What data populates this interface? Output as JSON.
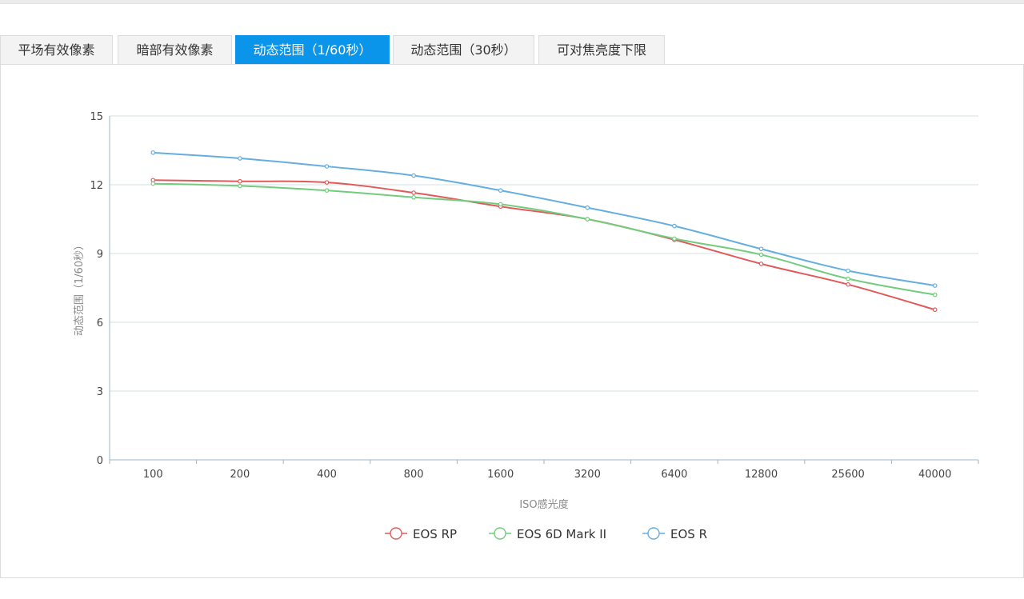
{
  "tabs": [
    {
      "label": "平场有效像素",
      "active": false
    },
    {
      "label": "暗部有效像素",
      "active": false
    },
    {
      "label": "动态范围（1/60秒）",
      "active": true
    },
    {
      "label": "动态范围（30秒）",
      "active": false
    },
    {
      "label": "可对焦亮度下限",
      "active": false
    }
  ],
  "chart_data": {
    "type": "line",
    "title": "",
    "xlabel": "ISO感光度",
    "ylabel": "动态范围（1/60秒）",
    "categories": [
      "100",
      "200",
      "400",
      "800",
      "1600",
      "3200",
      "6400",
      "12800",
      "25600",
      "40000"
    ],
    "ylim": [
      0,
      15
    ],
    "yticks": [
      0,
      3,
      6,
      9,
      12,
      15
    ],
    "grid": true,
    "legend_position": "bottom",
    "series": [
      {
        "name": "EOS RP",
        "color": "#e05a5a",
        "values": [
          12.2,
          12.15,
          12.1,
          11.65,
          11.05,
          10.5,
          9.6,
          8.55,
          7.65,
          6.55
        ]
      },
      {
        "name": "EOS 6D Mark II",
        "color": "#72cc7e",
        "values": [
          12.05,
          11.95,
          11.75,
          11.45,
          11.15,
          10.5,
          9.65,
          8.95,
          7.9,
          7.2
        ]
      },
      {
        "name": "EOS R",
        "color": "#64aee0",
        "values": [
          13.4,
          13.15,
          12.8,
          12.4,
          11.75,
          11.0,
          10.2,
          9.2,
          8.25,
          7.6
        ]
      }
    ]
  }
}
